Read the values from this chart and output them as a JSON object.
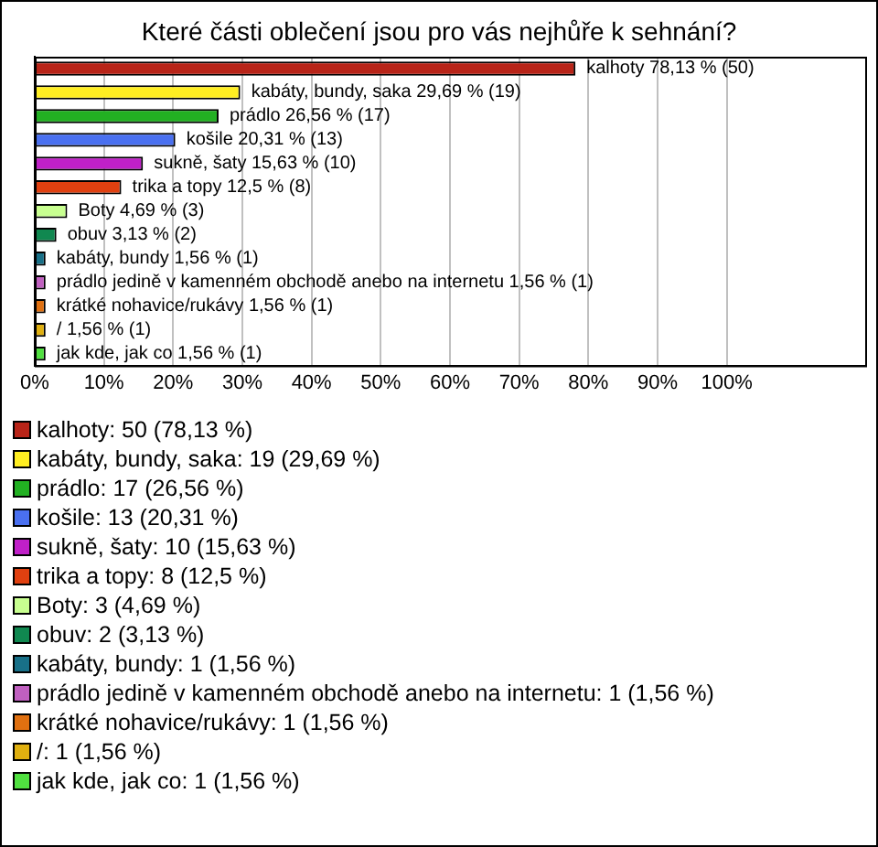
{
  "chart_data": {
    "type": "bar",
    "orientation": "horizontal",
    "title": "Které části oblečení jsou pro vás nejhůře k sehnání?",
    "categories": [
      "kalhoty",
      "kabáty, bundy, saka",
      "prádlo",
      "košile",
      "sukně, šaty",
      "trika a topy",
      "Boty",
      "obuv",
      "kabáty, bundy",
      "prádlo jedině v kamenném obchodě anebo na internetu",
      "krátké nohavice/rukávy",
      "/",
      "jak kde, jak co"
    ],
    "values": [
      78.13,
      29.69,
      26.56,
      20.31,
      15.63,
      12.5,
      4.69,
      3.13,
      1.56,
      1.56,
      1.56,
      1.56,
      1.56
    ],
    "value_labels": [
      "78,13 % (50)",
      "29,69 % (19)",
      "26,56 % (17)",
      "20,31 % (13)",
      "15,63 % (10)",
      "12,5 % (8)",
      "4,69 % (3)",
      "3,13 % (2)",
      "1,56 % (1)",
      "1,56 % (1)",
      "1,56 % (1)",
      "1,56 % (1)",
      "1,56 % (1)"
    ],
    "colors": [
      "#b82418",
      "#ffee22",
      "#22b022",
      "#4a70f0",
      "#c020c8",
      "#e04010",
      "#c8ff90",
      "#108850",
      "#187088",
      "#c060c0",
      "#e07010",
      "#e0b010",
      "#50e040"
    ],
    "xlim": [
      0,
      120
    ],
    "xticks": [
      {
        "value": 0,
        "label": "0%"
      },
      {
        "value": 10,
        "label": "10%"
      },
      {
        "value": 20,
        "label": "20%"
      },
      {
        "value": 30,
        "label": "30%"
      },
      {
        "value": 40,
        "label": "40%"
      },
      {
        "value": 50,
        "label": "50%"
      },
      {
        "value": 60,
        "label": "60%"
      },
      {
        "value": 70,
        "label": "70%"
      },
      {
        "value": 80,
        "label": "80%"
      },
      {
        "value": 90,
        "label": "90%"
      },
      {
        "value": 100,
        "label": "100%"
      }
    ],
    "grid": "x",
    "tick_labels": "x",
    "annotations": [
      "kalhoty: 50 (78,13 %)",
      "kabáty, bundy, saka: 19 (29,69 %)",
      "prádlo: 17 (26,56 %)",
      "košile: 13 (20,31 %)",
      "sukně, šaty: 10 (15,63 %)",
      "trika a topy: 8 (12,5 %)",
      "Boty: 3 (4,69 %)",
      "obuv: 2 (3,13 %)",
      "kabáty, bundy: 1 (1,56 %)",
      "prádlo jedině v kamenném obchodě anebo na internetu: 1 (1,56 %)",
      "krátké nohavice/rukávy: 1 (1,56 %)",
      "/: 1 (1,56 %)",
      "jak kde, jak co: 1 (1,56 %)"
    ]
  }
}
